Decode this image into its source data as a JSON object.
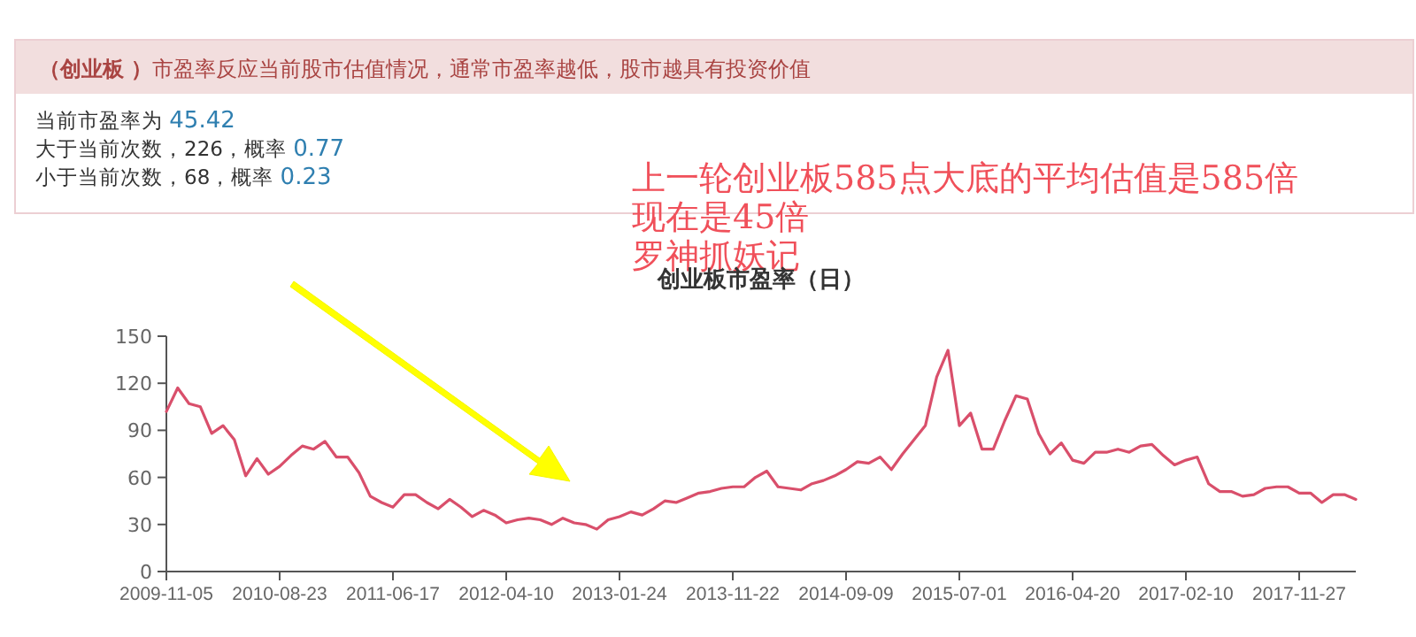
{
  "chart_data": {
    "type": "line",
    "title": "创业板市盈率（日）",
    "annotations": [
      "**（创业板 ）**市盈率反应当前股市估值情况，通常市盈率越低，股市越具有投资价值",
      "当前市盈率为 45.42",
      "大于当前次数，226，概率 0.77",
      "小于当前次数，68，概率 0.23",
      "上一轮创业板585点大底的平均估值是585倍",
      "现在是45倍",
      "罗神抓妖记"
    ],
    "categories": [
      "2009-11-05",
      null,
      null,
      null,
      null,
      null,
      null,
      null,
      null,
      null,
      "2010-08-23",
      null,
      null,
      null,
      null,
      null,
      null,
      null,
      null,
      null,
      "2011-06-17",
      null,
      null,
      null,
      null,
      null,
      null,
      null,
      null,
      null,
      "2012-04-10",
      null,
      null,
      null,
      null,
      null,
      null,
      null,
      null,
      null,
      "2013-01-24",
      null,
      null,
      null,
      null,
      null,
      null,
      null,
      null,
      null,
      "2013-11-22",
      null,
      null,
      null,
      null,
      null,
      null,
      null,
      null,
      null,
      "2014-09-09",
      null,
      null,
      null,
      null,
      null,
      null,
      null,
      null,
      null,
      "2015-07-01",
      null,
      null,
      null,
      null,
      null,
      null,
      null,
      null,
      null,
      "2016-04-20",
      null,
      null,
      null,
      null,
      null,
      null,
      null,
      null,
      null,
      "2017-02-10",
      null,
      null,
      null,
      null,
      null,
      null,
      null,
      null,
      null,
      "2017-11-27",
      null,
      null,
      null,
      null,
      null
    ],
    "series": [
      {
        "color": "#d94f6b",
        "values": [
          102,
          117,
          107,
          105,
          88,
          93,
          84,
          61,
          72,
          62,
          67,
          74,
          80,
          78,
          83,
          73,
          73,
          63,
          48,
          44,
          41,
          49,
          49,
          44,
          40,
          46,
          41,
          35,
          39,
          36,
          31,
          33,
          34,
          33,
          30,
          34,
          31,
          30,
          27,
          33,
          35,
          38,
          36,
          40,
          45,
          44,
          47,
          50,
          51,
          53,
          54,
          54,
          60,
          64,
          54,
          53,
          52,
          56,
          58,
          61,
          65,
          70,
          69,
          73,
          65,
          75,
          84,
          93,
          124,
          141,
          93,
          101,
          78,
          78,
          96,
          112,
          110,
          88,
          75,
          82,
          71,
          69,
          76,
          76,
          78,
          76,
          80,
          81,
          74,
          68,
          71,
          73,
          56,
          51,
          51,
          48,
          49,
          53,
          54,
          54,
          50,
          50,
          44,
          49,
          49,
          46
        ]
      }
    ],
    "ylim": [
      0,
      150
    ],
    "yticks": [
      0,
      30,
      60,
      90,
      120,
      150
    ],
    "grid": false,
    "marker": "none",
    "line_style": "solid"
  }
}
